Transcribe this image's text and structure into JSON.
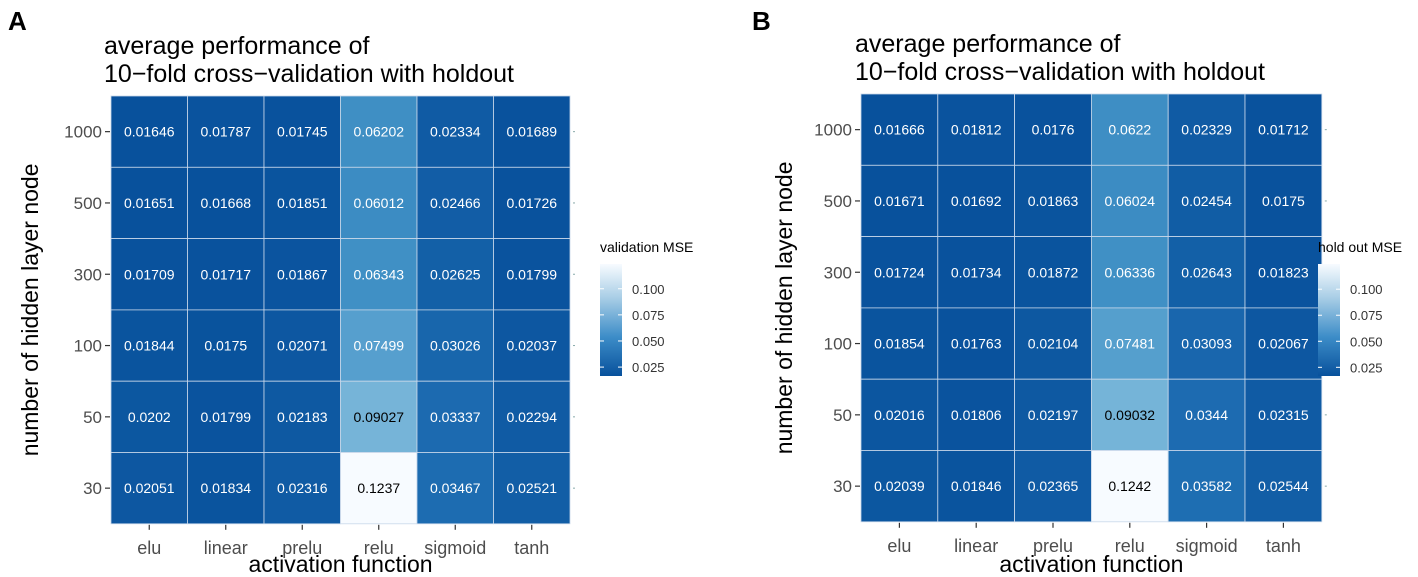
{
  "panel_labels": [
    "A",
    "B"
  ],
  "chart_data": [
    {
      "type": "heatmap",
      "panel": "A",
      "title": [
        "average performance of",
        "10−fold cross−validation with holdout"
      ],
      "xlabel": "activation function",
      "ylabel": "number of hidden layer node",
      "x_categories": [
        "elu",
        "linear",
        "prelu",
        "relu",
        "sigmoid",
        "tanh"
      ],
      "y_categories": [
        "1000",
        "500",
        "300",
        "100",
        "50",
        "30"
      ],
      "values": [
        [
          0.01646,
          0.01787,
          0.01745,
          0.06202,
          0.02334,
          0.01689
        ],
        [
          0.01651,
          0.01668,
          0.01851,
          0.06012,
          0.02466,
          0.01726
        ],
        [
          0.01709,
          0.01717,
          0.01867,
          0.06343,
          0.02625,
          0.01799
        ],
        [
          0.01844,
          0.0175,
          0.02071,
          0.07499,
          0.03026,
          0.02037
        ],
        [
          0.0202,
          0.01799,
          0.02183,
          0.09027,
          0.03337,
          0.02294
        ],
        [
          0.02051,
          0.01834,
          0.02316,
          0.1237,
          0.03467,
          0.02521
        ]
      ],
      "labels": [
        [
          "0.01646",
          "0.01787",
          "0.01745",
          "0.06202",
          "0.02334",
          "0.01689"
        ],
        [
          "0.01651",
          "0.01668",
          "0.01851",
          "0.06012",
          "0.02466",
          "0.01726"
        ],
        [
          "0.01709",
          "0.01717",
          "0.01867",
          "0.06343",
          "0.02625",
          "0.01799"
        ],
        [
          "0.01844",
          "0.0175",
          "0.02071",
          "0.07499",
          "0.03026",
          "0.02037"
        ],
        [
          "0.0202",
          "0.01799",
          "0.02183",
          "0.09027",
          "0.03337",
          "0.02294"
        ],
        [
          "0.02051",
          "0.01834",
          "0.02316",
          "0.1237",
          "0.03467",
          "0.02521"
        ]
      ],
      "legend": {
        "title": "validation MSE",
        "ticks": [
          0.1,
          0.075,
          0.05,
          0.025
        ],
        "tick_labels": [
          "0.100",
          "0.075",
          "0.050",
          "0.025"
        ],
        "range": [
          0.01646,
          0.1237
        ],
        "position": "right"
      },
      "colors": {
        "low": "#08519c",
        "high": "#f7fbff",
        "text_light": "#ffffff",
        "text_dark": "#000000"
      }
    },
    {
      "type": "heatmap",
      "panel": "B",
      "title": [
        "average performance of",
        "10−fold cross−validation with holdout"
      ],
      "xlabel": "activation function",
      "ylabel": "number of hidden layer node",
      "x_categories": [
        "elu",
        "linear",
        "prelu",
        "relu",
        "sigmoid",
        "tanh"
      ],
      "y_categories": [
        "1000",
        "500",
        "300",
        "100",
        "50",
        "30"
      ],
      "values": [
        [
          0.01666,
          0.01812,
          0.0176,
          0.0622,
          0.02329,
          0.01712
        ],
        [
          0.01671,
          0.01692,
          0.01863,
          0.06024,
          0.02454,
          0.0175
        ],
        [
          0.01724,
          0.01734,
          0.01872,
          0.06336,
          0.02643,
          0.01823
        ],
        [
          0.01854,
          0.01763,
          0.02104,
          0.07481,
          0.03093,
          0.02067
        ],
        [
          0.02016,
          0.01806,
          0.02197,
          0.09032,
          0.0344,
          0.02315
        ],
        [
          0.02039,
          0.01846,
          0.02365,
          0.1242,
          0.03582,
          0.02544
        ]
      ],
      "labels": [
        [
          "0.01666",
          "0.01812",
          "0.0176",
          "0.0622",
          "0.02329",
          "0.01712"
        ],
        [
          "0.01671",
          "0.01692",
          "0.01863",
          "0.06024",
          "0.02454",
          "0.0175"
        ],
        [
          "0.01724",
          "0.01734",
          "0.01872",
          "0.06336",
          "0.02643",
          "0.01823"
        ],
        [
          "0.01854",
          "0.01763",
          "0.02104",
          "0.07481",
          "0.03093",
          "0.02067"
        ],
        [
          "0.02016",
          "0.01806",
          "0.02197",
          "0.09032",
          "0.0344",
          "0.02315"
        ],
        [
          "0.02039",
          "0.01846",
          "0.02365",
          "0.1242",
          "0.03582",
          "0.02544"
        ]
      ],
      "legend": {
        "title": "hold out MSE",
        "ticks": [
          0.1,
          0.075,
          0.05,
          0.025
        ],
        "tick_labels": [
          "0.100",
          "0.075",
          "0.050",
          "0.025"
        ],
        "range": [
          0.01666,
          0.1242
        ],
        "position": "right"
      },
      "colors": {
        "low": "#08519c",
        "high": "#f7fbff",
        "text_light": "#ffffff",
        "text_dark": "#000000"
      }
    }
  ]
}
